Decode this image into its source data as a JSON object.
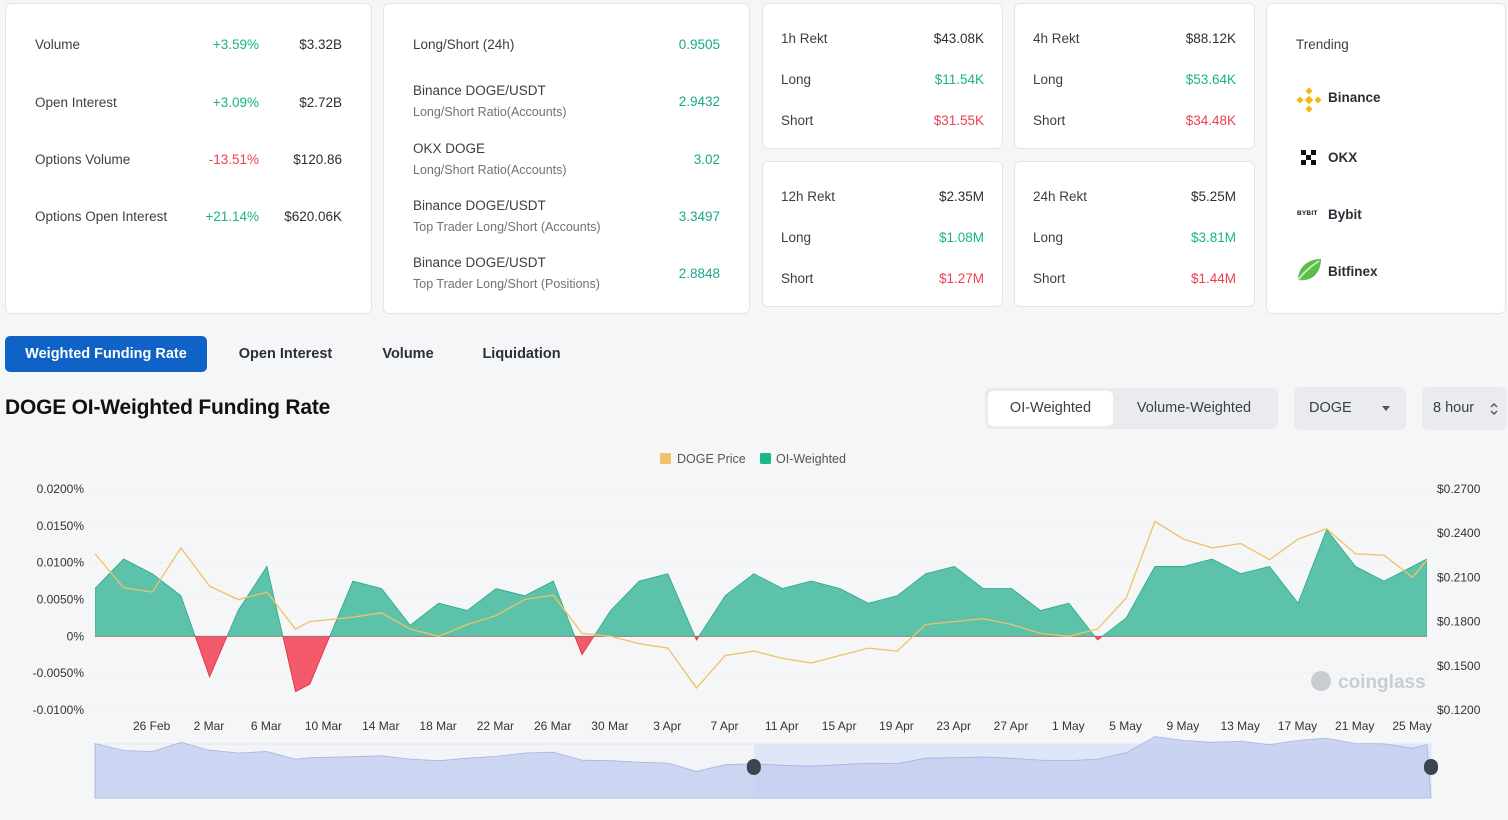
{
  "market": [
    {
      "label": "Volume",
      "change": "+3.59%",
      "dir": "pos",
      "value": "$3.32B"
    },
    {
      "label": "Open Interest",
      "change": "+3.09%",
      "dir": "pos",
      "value": "$2.72B"
    },
    {
      "label": "Options Volume",
      "change": "-13.51%",
      "dir": "neg",
      "value": "$120.86"
    },
    {
      "label": "Options Open Interest",
      "change": "+21.14%",
      "dir": "pos",
      "value": "$620.06K"
    }
  ],
  "ratios": [
    {
      "title": "Long/Short (24h)",
      "sub": "",
      "value": "0.9505"
    },
    {
      "title": "Binance DOGE/USDT",
      "sub": "Long/Short Ratio(Accounts)",
      "value": "2.9432"
    },
    {
      "title": "OKX DOGE",
      "sub": "Long/Short Ratio(Accounts)",
      "value": "3.02"
    },
    {
      "title": "Binance DOGE/USDT",
      "sub": "Top Trader Long/Short (Accounts)",
      "value": "3.3497"
    },
    {
      "title": "Binance DOGE/USDT",
      "sub": "Top Trader Long/Short (Positions)",
      "value": "2.8848"
    }
  ],
  "rekt": [
    {
      "title": "1h Rekt",
      "total": "$43.08K",
      "long_label": "Long",
      "long": "$11.54K",
      "short_label": "Short",
      "short": "$31.55K"
    },
    {
      "title": "4h Rekt",
      "total": "$88.12K",
      "long_label": "Long",
      "long": "$53.64K",
      "short_label": "Short",
      "short": "$34.48K"
    },
    {
      "title": "12h Rekt",
      "total": "$2.35M",
      "long_label": "Long",
      "long": "$1.08M",
      "short_label": "Short",
      "short": "$1.27M"
    },
    {
      "title": "24h Rekt",
      "total": "$5.25M",
      "long_label": "Long",
      "long": "$3.81M",
      "short_label": "Short",
      "short": "$1.44M"
    }
  ],
  "trending": {
    "title": "Trending",
    "items": [
      {
        "name": "Binance",
        "icon": "binance-logo-icon"
      },
      {
        "name": "OKX",
        "icon": "okx-logo-icon"
      },
      {
        "name": "Bybit",
        "icon": "bybit-logo-icon",
        "icon_text": "BYBIT"
      },
      {
        "name": "Bitfinex",
        "icon": "bitfinex-logo-icon"
      }
    ]
  },
  "tabs": [
    "Weighted Funding Rate",
    "Open Interest",
    "Volume",
    "Liquidation"
  ],
  "active_tab": 0,
  "chart_title": "DOGE OI-Weighted Funding Rate",
  "weighting": {
    "options": [
      "OI-Weighted",
      "Volume-Weighted"
    ],
    "selected": 0
  },
  "coin_select": {
    "value": "DOGE"
  },
  "interval_select": {
    "value": "8 hour"
  },
  "watermark": "coinglass",
  "colors": {
    "accent": "#1063c6",
    "funding_pos": "#5cc2a9",
    "funding_neg": "#f2596a",
    "price_line": "#f0c267"
  },
  "chart_data": {
    "type": "area",
    "title": "DOGE OI-Weighted Funding Rate",
    "legend": [
      "DOGE Price",
      "OI-Weighted"
    ],
    "legend_position": "top-center",
    "x_ticks": [
      "26 Feb",
      "2 Mar",
      "6 Mar",
      "10 Mar",
      "14 Mar",
      "18 Mar",
      "22 Mar",
      "26 Mar",
      "30 Mar",
      "3 Apr",
      "7 Apr",
      "11 Apr",
      "15 Apr",
      "19 Apr",
      "23 Apr",
      "27 Apr",
      "1 May",
      "5 May",
      "9 May",
      "13 May",
      "17 May",
      "21 May",
      "25 May"
    ],
    "y_left_ticks": [
      "0.0200%",
      "0.0150%",
      "0.0100%",
      "0.0050%",
      "0%",
      "-0.0050%",
      "-0.0100%"
    ],
    "y_left_range": [
      -0.01,
      0.02
    ],
    "y_right_ticks": [
      "$0.2700",
      "$0.2400",
      "$0.2100",
      "$0.1800",
      "$0.1500",
      "$0.1200"
    ],
    "y_right_range": [
      0.12,
      0.27
    ],
    "grid": true,
    "series": [
      {
        "name": "OI-Weighted",
        "x": [
          "24 Feb",
          "26 Feb",
          "28 Feb",
          "2 Mar",
          "4 Mar",
          "6 Mar",
          "8 Mar",
          "10 Mar",
          "11 Mar",
          "14 Mar",
          "16 Mar",
          "18 Mar",
          "20 Mar",
          "22 Mar",
          "24 Mar",
          "26 Mar",
          "28 Mar",
          "30 Mar",
          "1 Apr",
          "3 Apr",
          "5 Apr",
          "7 Apr",
          "9 Apr",
          "11 Apr",
          "13 Apr",
          "15 Apr",
          "17 Apr",
          "19 Apr",
          "21 Apr",
          "23 Apr",
          "25 Apr",
          "27 Apr",
          "29 Apr",
          "1 May",
          "3 May",
          "5 May",
          "7 May",
          "9 May",
          "11 May",
          "13 May",
          "15 May",
          "17 May",
          "19 May",
          "21 May",
          "23 May",
          "25 May",
          "27 May",
          "28 May"
        ],
        "values": [
          0.0065,
          0.0105,
          0.0085,
          0.0055,
          -0.0055,
          0.0035,
          0.0095,
          -0.0075,
          -0.0065,
          0.0075,
          0.0065,
          0.0015,
          0.0045,
          0.0035,
          0.0065,
          0.0055,
          0.0075,
          -0.0025,
          0.0035,
          0.0075,
          0.0085,
          -0.0005,
          0.0055,
          0.0085,
          0.0065,
          0.0075,
          0.0065,
          0.0045,
          0.0055,
          0.0085,
          0.0095,
          0.0065,
          0.0065,
          0.0035,
          0.0045,
          -0.0005,
          0.0025,
          0.0095,
          0.0095,
          0.0105,
          0.0085,
          0.0095,
          0.0045,
          0.0145,
          0.0095,
          0.0075,
          0.0095,
          0.0105
        ]
      },
      {
        "name": "DOGE Price",
        "x": [
          "24 Feb",
          "26 Feb",
          "28 Feb",
          "2 Mar",
          "4 Mar",
          "6 Mar",
          "8 Mar",
          "10 Mar",
          "11 Mar",
          "14 Mar",
          "16 Mar",
          "18 Mar",
          "20 Mar",
          "22 Mar",
          "24 Mar",
          "26 Mar",
          "28 Mar",
          "30 Mar",
          "1 Apr",
          "3 Apr",
          "5 Apr",
          "7 Apr",
          "9 Apr",
          "11 Apr",
          "13 Apr",
          "15 Apr",
          "17 Apr",
          "19 Apr",
          "21 Apr",
          "23 Apr",
          "25 Apr",
          "27 Apr",
          "29 Apr",
          "1 May",
          "3 May",
          "5 May",
          "7 May",
          "9 May",
          "11 May",
          "13 May",
          "15 May",
          "17 May",
          "19 May",
          "21 May",
          "23 May",
          "25 May",
          "27 May",
          "28 May"
        ],
        "values": [
          0.226,
          0.203,
          0.2,
          0.23,
          0.204,
          0.195,
          0.2,
          0.175,
          0.18,
          0.183,
          0.186,
          0.175,
          0.17,
          0.178,
          0.184,
          0.195,
          0.198,
          0.172,
          0.17,
          0.165,
          0.162,
          0.135,
          0.157,
          0.16,
          0.155,
          0.152,
          0.157,
          0.162,
          0.16,
          0.178,
          0.18,
          0.182,
          0.178,
          0.172,
          0.17,
          0.175,
          0.196,
          0.248,
          0.236,
          0.23,
          0.233,
          0.222,
          0.236,
          0.243,
          0.226,
          0.225,
          0.21,
          0.222
        ]
      }
    ],
    "brush": {
      "start": "11 Apr",
      "end": "28 May"
    }
  }
}
